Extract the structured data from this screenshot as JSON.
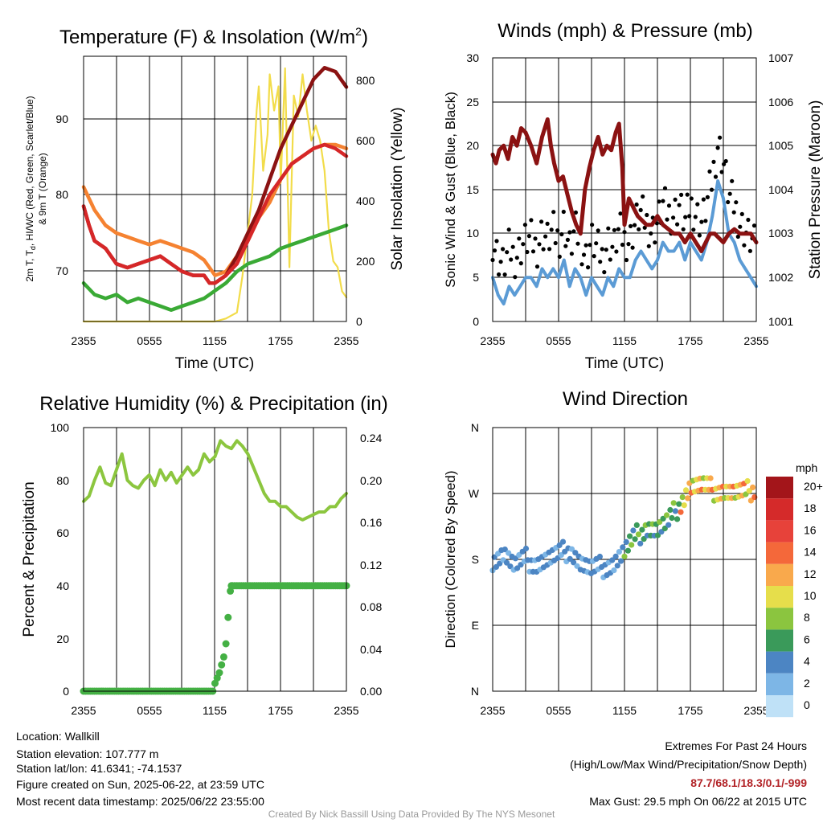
{
  "charts": [
    {
      "type": "line",
      "title_a": "Temperature (F) & Insolation (W/m",
      "title_sup": "2",
      "title_b": ")",
      "xlabel": "Time (UTC)",
      "ylabel_line1": "2m T, T",
      "ylabel_sub": "d",
      "ylabel_rest": ", HI/WC (Red, Green, Scarlet/Blue)",
      "ylabel_line2": "& 9m T (Orange)",
      "y2label": "Solar Insolation (Yellow)",
      "xticks": [
        "2355",
        "0555",
        "1155",
        "1755",
        "2355"
      ],
      "yticks": [
        "70",
        "80",
        "90"
      ],
      "y2ticks": [
        "0",
        "200",
        "400",
        "600",
        "800"
      ],
      "xlim": [
        0,
        24
      ],
      "ylim": [
        63.5,
        98
      ],
      "y2lim": [
        0,
        880
      ],
      "series": [
        {
          "color": "#f58231",
          "axis": "left",
          "x": [
            0,
            0.5,
            1,
            2,
            3,
            4,
            5,
            6,
            7,
            8,
            9,
            10,
            11,
            11.5,
            12,
            13,
            14,
            15,
            16,
            17,
            18,
            19,
            20,
            21,
            22,
            23,
            24
          ],
          "y": [
            81,
            79.5,
            78,
            76,
            75,
            74.5,
            74,
            73.5,
            74,
            73.5,
            73,
            72.5,
            71.5,
            70.5,
            69.5,
            70,
            72,
            74,
            77,
            79,
            82,
            84,
            85,
            86,
            86.5,
            86.5,
            86
          ]
        },
        {
          "color": "#8b1212",
          "axis": "left",
          "x": [
            0,
            0.5,
            1,
            2,
            3,
            4,
            5,
            6,
            7,
            8,
            9,
            10,
            11,
            11.5,
            12,
            13,
            14,
            15,
            16,
            17,
            18,
            19,
            20,
            21,
            22,
            23,
            24
          ],
          "y": [
            78.5,
            76,
            74,
            73,
            71,
            70.5,
            71,
            71.5,
            72,
            71,
            70,
            69.5,
            69.5,
            68.5,
            68.5,
            69.5,
            72,
            75,
            78,
            82,
            86,
            89,
            92,
            95,
            96.5,
            96,
            94
          ]
        },
        {
          "color": "#d62728",
          "axis": "left",
          "x": [
            0,
            0.5,
            1,
            2,
            3,
            4,
            5,
            6,
            7,
            8,
            9,
            10,
            11,
            11.5,
            12,
            13,
            14,
            15,
            16,
            17,
            18,
            19,
            20,
            21,
            22,
            23,
            24
          ],
          "y": [
            78.5,
            76,
            74,
            73,
            71,
            70.5,
            71,
            71.5,
            72,
            71,
            70,
            69.5,
            69.5,
            68.5,
            68.5,
            69.5,
            71,
            74,
            77,
            80,
            82,
            84,
            85,
            86,
            86.5,
            86,
            85
          ]
        },
        {
          "color": "#3aaa35",
          "axis": "left",
          "x": [
            0,
            1,
            2,
            3,
            4,
            5,
            6,
            7,
            8,
            9,
            10,
            11,
            12,
            13,
            14,
            15,
            16,
            17,
            18,
            19,
            20,
            21,
            22,
            23,
            24
          ],
          "y": [
            68.5,
            67,
            66.5,
            67,
            66,
            66.5,
            66,
            65.5,
            65,
            65.5,
            66,
            66.5,
            67.5,
            68.5,
            70,
            71,
            71.5,
            72,
            73,
            73.5,
            74,
            74.5,
            75,
            75.5,
            76
          ]
        },
        {
          "color": "#f2dc4a",
          "axis": "right",
          "x": [
            0,
            1,
            2,
            4,
            6,
            8,
            10,
            12,
            13,
            14,
            14.5,
            15,
            15.4,
            15.8,
            16,
            16.4,
            16.8,
            17,
            17.4,
            17.8,
            18,
            18.4,
            18.8,
            19.2,
            19.6,
            20,
            20.4,
            20.8,
            21.2,
            21.6,
            22,
            22.4,
            22.8,
            23.2,
            23.6,
            24
          ],
          "y": [
            0,
            0,
            0,
            0,
            0,
            0,
            0,
            0,
            10,
            30,
            150,
            300,
            420,
            700,
            780,
            500,
            620,
            820,
            700,
            780,
            460,
            840,
            180,
            750,
            680,
            820,
            700,
            600,
            650,
            600,
            500,
            300,
            200,
            180,
            100,
            80
          ]
        }
      ]
    },
    {
      "type": "line",
      "title": "Winds (mph) & Pressure (mb)",
      "xlabel": "Time (UTC)",
      "ylabel": "Sonic Wind & Gust (Blue, Black)",
      "y2label": "Station Pressure (Maroon)",
      "xticks": [
        "2355",
        "0555",
        "1155",
        "1755",
        "2355"
      ],
      "yticks": [
        "0",
        "5",
        "10",
        "15",
        "20",
        "25",
        "30"
      ],
      "y2ticks": [
        "1001",
        "1002",
        "1003",
        "1004",
        "1005",
        "1006",
        "1007"
      ],
      "xlim": [
        0,
        24
      ],
      "ylim": [
        0,
        30
      ],
      "y2lim": [
        1001,
        1007
      ],
      "series": [
        {
          "color": "#8b1212",
          "axis": "right",
          "x": [
            0,
            0.3,
            0.6,
            1,
            1.4,
            1.8,
            2.2,
            2.6,
            3,
            3.5,
            4,
            4.5,
            5,
            5.3,
            5.6,
            6,
            6.4,
            6.8,
            7.2,
            7.6,
            8,
            8.4,
            8.8,
            9.2,
            9.6,
            10,
            10.4,
            10.8,
            11.2,
            11.5,
            11.8,
            12,
            12.4,
            12.8,
            13.2,
            13.6,
            14,
            14.5,
            15,
            15.5,
            16,
            16.5,
            17,
            17.5,
            18,
            18.5,
            19,
            19.4,
            19.8,
            20.2,
            20.6,
            21,
            21.5,
            22,
            22.5,
            23,
            23.5,
            24
          ],
          "y": [
            1004.8,
            1004.6,
            1004.9,
            1005.0,
            1004.7,
            1005.2,
            1005.0,
            1005.4,
            1005.3,
            1005.0,
            1004.6,
            1005.2,
            1005.6,
            1005.0,
            1004.6,
            1004.2,
            1004.3,
            1003.9,
            1003.5,
            1003.2,
            1003.0,
            1004.0,
            1004.5,
            1004.9,
            1005.2,
            1004.8,
            1005.0,
            1004.9,
            1005.3,
            1005.5,
            1004.5,
            1003.2,
            1003.8,
            1003.6,
            1003.4,
            1003.3,
            1003.2,
            1003.2,
            1003.4,
            1003.2,
            1003.1,
            1003.0,
            1003.0,
            1002.8,
            1003.0,
            1002.8,
            1002.6,
            1002.8,
            1003.0,
            1003.0,
            1002.9,
            1002.8,
            1003.0,
            1003.1,
            1003.0,
            1003.0,
            1003.0,
            1002.8
          ]
        },
        {
          "color": "#5b9bd5",
          "axis": "left",
          "x": [
            0,
            0.5,
            1,
            1.5,
            2,
            2.5,
            3,
            3.5,
            4,
            4.5,
            5,
            5.5,
            6,
            6.5,
            7,
            7.5,
            8,
            8.5,
            9,
            9.5,
            10,
            10.5,
            11,
            11.5,
            12,
            12.5,
            13,
            13.5,
            14,
            14.5,
            15,
            15.5,
            16,
            16.5,
            17,
            17.5,
            18,
            18.5,
            19,
            19.5,
            20,
            20.5,
            21,
            21.5,
            22,
            22.5,
            23,
            23.5,
            24
          ],
          "y": [
            5,
            3,
            2,
            4,
            3,
            4,
            5,
            5,
            4,
            6,
            5,
            6,
            5,
            7,
            4,
            6,
            5,
            3,
            5,
            4,
            3,
            5,
            4,
            6,
            5,
            5,
            7,
            8,
            7,
            6,
            7,
            9,
            8,
            8,
            9,
            7,
            9,
            8,
            7,
            9,
            12,
            16,
            14,
            10,
            9,
            7,
            6,
            5,
            4
          ]
        }
      ]
    },
    {
      "type": "line",
      "title": "Relative Humidity (%) & Precipitation (in)",
      "ylabel": "Percent & Precipitation",
      "xticks": [
        "2355",
        "0555",
        "1155",
        "1755",
        "2355"
      ],
      "yticks": [
        "0",
        "20",
        "40",
        "60",
        "80",
        "100"
      ],
      "y2ticks": [
        "0.00",
        "0.04",
        "0.08",
        "0.12",
        "0.16",
        "0.20",
        "0.24"
      ],
      "xlim": [
        0,
        24
      ],
      "ylim": [
        0,
        100
      ],
      "y2lim": [
        0,
        0.25
      ],
      "series": [
        {
          "color": "#8cc63f",
          "axis": "left",
          "x": [
            0,
            0.5,
            1,
            1.5,
            2,
            2.5,
            3,
            3.5,
            4,
            4.5,
            5,
            5.5,
            6,
            6.5,
            7,
            7.5,
            8,
            8.5,
            9,
            9.5,
            10,
            10.5,
            11,
            11.5,
            12,
            12.5,
            13,
            13.5,
            14,
            14.5,
            15,
            15.5,
            16,
            16.5,
            17,
            17.5,
            18,
            18.5,
            19,
            19.5,
            20,
            20.5,
            21,
            21.5,
            22,
            22.5,
            23,
            23.5,
            24
          ],
          "y": [
            72,
            74,
            80,
            85,
            79,
            78,
            84,
            90,
            80,
            78,
            77,
            80,
            82,
            78,
            84,
            80,
            83,
            79,
            82,
            85,
            82,
            84,
            90,
            87,
            89,
            95,
            93,
            92,
            95,
            93,
            90,
            85,
            80,
            75,
            72,
            72,
            70,
            70,
            68,
            66,
            65,
            66,
            67,
            68,
            68,
            70,
            70,
            73,
            75
          ]
        }
      ]
    },
    {
      "type": "scatter",
      "title": "Wind Direction",
      "ylabel": "Direction (Colored By Speed)",
      "xticks": [
        "2355",
        "0555",
        "1155",
        "1755",
        "2355"
      ],
      "yticks": [
        "N",
        "E",
        "S",
        "W",
        "N"
      ],
      "xlim": [
        0,
        24
      ],
      "ylim": [
        0,
        360
      ],
      "legend_title": "mph",
      "legend_labels": [
        "20+",
        "18",
        "16",
        "14",
        "12",
        "10",
        "8",
        "6",
        "4",
        "2",
        "0"
      ],
      "legend_colors": [
        "#a3151a",
        "#d52a2a",
        "#e7423a",
        "#f4683a",
        "#f9a94c",
        "#e6de4b",
        "#8bc53f",
        "#3a9a5a",
        "#4c85c3",
        "#7db6e6",
        "#bfe1f7"
      ]
    }
  ],
  "footer": {
    "location": "Location: Wallkill",
    "elevation": "Station elevation: 107.777 m",
    "latlon": "Station lat/lon: 41.6341; -74.1537",
    "created": "Figure created on Sun, 2025-06-22, at 23:59 UTC",
    "recent": "Most recent data timestamp: 2025/06/22 23:55:00",
    "extremes_title": "Extremes For Past 24 Hours",
    "extremes_fields": "(High/Low/Max Wind/Precipitation/Snow Depth)",
    "extremes_values": "87.7/68.1/18.3/0.1/-999",
    "max_gust": "Max Gust: 29.5 mph On 06/22 at 2015 UTC",
    "credit": "Created By Nick Bassill Using Data Provided By The NYS Mesonet"
  }
}
